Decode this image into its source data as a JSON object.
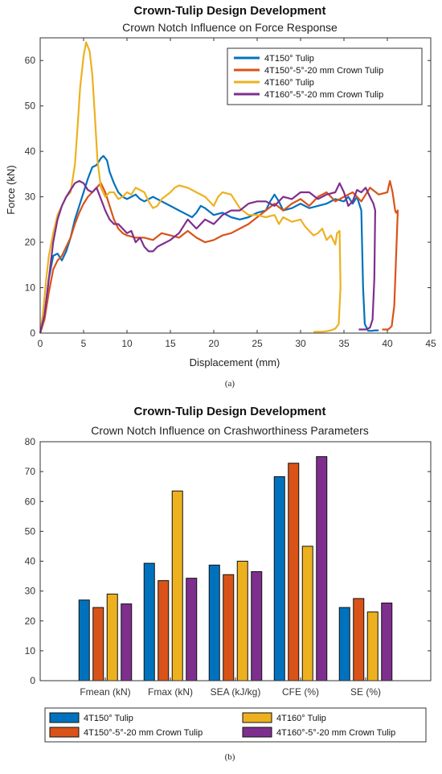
{
  "chart_data": [
    {
      "type": "line",
      "title": "Crown-Tulip Design Development",
      "subtitle": "Crown Notch Influence on Force Response",
      "xlabel": "Displacement (mm)",
      "ylabel": "Force (kN)",
      "xlim": [
        0,
        45
      ],
      "ylim": [
        0,
        65
      ],
      "xticks": [
        "0",
        "5",
        "10",
        "15",
        "20",
        "25",
        "30",
        "35",
        "40",
        "45"
      ],
      "yticks": [
        "0",
        "10",
        "20",
        "30",
        "40",
        "50",
        "60"
      ],
      "grid": false,
      "legend_position": "top-right",
      "caption": "(a)",
      "series": [
        {
          "name": "4T150° Tulip",
          "color": "#0072BD",
          "points": [
            [
              0,
              0
            ],
            [
              0.5,
              4
            ],
            [
              1,
              12
            ],
            [
              1.5,
              17
            ],
            [
              2,
              17.5
            ],
            [
              2.5,
              16
            ],
            [
              3,
              18
            ],
            [
              3.5,
              21
            ],
            [
              4,
              25
            ],
            [
              4.5,
              28
            ],
            [
              5,
              31
            ],
            [
              5.5,
              34
            ],
            [
              6,
              36.5
            ],
            [
              6.5,
              37
            ],
            [
              7,
              38.5
            ],
            [
              7.3,
              39
            ],
            [
              7.7,
              38
            ],
            [
              8,
              35.5
            ],
            [
              8.5,
              33
            ],
            [
              9,
              31
            ],
            [
              9.5,
              30
            ],
            [
              10,
              29.5
            ],
            [
              10.5,
              30
            ],
            [
              11,
              30.5
            ],
            [
              11.5,
              29.5
            ],
            [
              12,
              29
            ],
            [
              13,
              30
            ],
            [
              14,
              29
            ],
            [
              15,
              28
            ],
            [
              16,
              27
            ],
            [
              17,
              26
            ],
            [
              17.5,
              25.5
            ],
            [
              18,
              26.5
            ],
            [
              18.5,
              28
            ],
            [
              19,
              27.5
            ],
            [
              20,
              26
            ],
            [
              21,
              26.5
            ],
            [
              22,
              25.5
            ],
            [
              23,
              25
            ],
            [
              24,
              25.5
            ],
            [
              25,
              26.5
            ],
            [
              26,
              27
            ],
            [
              26.5,
              29
            ],
            [
              27,
              30.5
            ],
            [
              27.5,
              29
            ],
            [
              28,
              27
            ],
            [
              29,
              27.5
            ],
            [
              30,
              28.5
            ],
            [
              31,
              27.5
            ],
            [
              32,
              28
            ],
            [
              33,
              28.5
            ],
            [
              34,
              29.5
            ],
            [
              35,
              29
            ],
            [
              35.5,
              30
            ],
            [
              36,
              28.5
            ],
            [
              36.5,
              30
            ],
            [
              37,
              27
            ],
            [
              37.2,
              10
            ],
            [
              37.4,
              2
            ],
            [
              37.8,
              0.5
            ],
            [
              38.2,
              0.5
            ],
            [
              38.6,
              0.6
            ],
            [
              39.0,
              0.6
            ]
          ]
        },
        {
          "name": "4T150°-5°-20 mm Crown Tulip",
          "color": "#D95319",
          "points": [
            [
              0,
              0
            ],
            [
              0.5,
              3
            ],
            [
              1,
              9
            ],
            [
              1.5,
              14
            ],
            [
              2,
              16
            ],
            [
              2.5,
              17
            ],
            [
              3,
              19
            ],
            [
              3.5,
              21
            ],
            [
              4,
              24
            ],
            [
              4.5,
              26.5
            ],
            [
              5,
              28.5
            ],
            [
              5.5,
              30
            ],
            [
              6,
              31
            ],
            [
              6.5,
              32
            ],
            [
              7,
              33
            ],
            [
              7.5,
              31
            ],
            [
              8,
              28
            ],
            [
              8.5,
              25
            ],
            [
              9,
              23
            ],
            [
              9.5,
              22
            ],
            [
              10,
              21.5
            ],
            [
              11,
              21
            ],
            [
              12,
              21
            ],
            [
              13,
              20.5
            ],
            [
              14,
              22
            ],
            [
              15,
              21.5
            ],
            [
              16,
              21
            ],
            [
              17,
              22.5
            ],
            [
              18,
              21
            ],
            [
              19,
              20
            ],
            [
              20,
              20.5
            ],
            [
              21,
              21.5
            ],
            [
              22,
              22
            ],
            [
              23,
              23
            ],
            [
              24,
              24
            ],
            [
              25,
              25.5
            ],
            [
              26,
              27
            ],
            [
              27,
              28.5
            ],
            [
              28,
              27
            ],
            [
              29,
              28.5
            ],
            [
              30,
              29.5
            ],
            [
              31,
              28
            ],
            [
              32,
              30
            ],
            [
              33,
              31
            ],
            [
              34,
              29
            ],
            [
              35,
              30
            ],
            [
              36,
              31
            ],
            [
              37,
              29
            ],
            [
              38,
              32
            ],
            [
              39,
              30.5
            ],
            [
              40,
              31
            ],
            [
              40.3,
              33.5
            ],
            [
              40.6,
              31
            ],
            [
              40.9,
              27
            ],
            [
              41.0,
              26.5
            ],
            [
              41.0,
              26.5
            ],
            [
              41.2,
              27
            ],
            [
              40.8,
              6
            ],
            [
              40.5,
              1.5
            ],
            [
              40.1,
              0.8
            ],
            [
              39.7,
              0.8
            ],
            [
              39.4,
              0.8
            ]
          ]
        },
        {
          "name": "4T160° Tulip",
          "color": "#EDB120",
          "points": [
            [
              0,
              0
            ],
            [
              0.3,
              4
            ],
            [
              0.7,
              12
            ],
            [
              1,
              17
            ],
            [
              1.5,
              22
            ],
            [
              2,
              26
            ],
            [
              2.5,
              28
            ],
            [
              3,
              30
            ],
            [
              3.5,
              31
            ],
            [
              4,
              37
            ],
            [
              4.3,
              45
            ],
            [
              4.6,
              54
            ],
            [
              5,
              61
            ],
            [
              5.3,
              64
            ],
            [
              5.7,
              62
            ],
            [
              6,
              57
            ],
            [
              6.3,
              48
            ],
            [
              6.6,
              38
            ],
            [
              7,
              32
            ],
            [
              7.5,
              30
            ],
            [
              8,
              31
            ],
            [
              8.5,
              31
            ],
            [
              9,
              29.5
            ],
            [
              9.5,
              30
            ],
            [
              10,
              31
            ],
            [
              10.5,
              30.5
            ],
            [
              11,
              32
            ],
            [
              11.5,
              31.5
            ],
            [
              12,
              31
            ],
            [
              12.5,
              29
            ],
            [
              13,
              27.5
            ],
            [
              13.5,
              28
            ],
            [
              14,
              29.5
            ],
            [
              15,
              31
            ],
            [
              15.5,
              32
            ],
            [
              16,
              32.5
            ],
            [
              17,
              32
            ],
            [
              18,
              31
            ],
            [
              19,
              30
            ],
            [
              20,
              28
            ],
            [
              20.5,
              30
            ],
            [
              21,
              31
            ],
            [
              22,
              30.5
            ],
            [
              23,
              27.5
            ],
            [
              24,
              26
            ],
            [
              25,
              26
            ],
            [
              26,
              25.5
            ],
            [
              27,
              26
            ],
            [
              27.5,
              24
            ],
            [
              28,
              25.5
            ],
            [
              29,
              24.5
            ],
            [
              30,
              25
            ],
            [
              30.5,
              23.5
            ],
            [
              31,
              22.5
            ],
            [
              31.5,
              21.5
            ],
            [
              32,
              22
            ],
            [
              32.5,
              23
            ],
            [
              33,
              20.5
            ],
            [
              33.5,
              21.5
            ],
            [
              34,
              19.5
            ],
            [
              34.2,
              22
            ],
            [
              34.5,
              22.5
            ],
            [
              34.6,
              10
            ],
            [
              34.4,
              2
            ],
            [
              34.0,
              1
            ],
            [
              33.5,
              0.6
            ],
            [
              33.0,
              0.4
            ],
            [
              32.5,
              0.3
            ],
            [
              32.0,
              0.3
            ],
            [
              31.5,
              0.3
            ]
          ]
        },
        {
          "name": "4T160°-5°-20 mm Crown Tulip",
          "color": "#7E2F8E",
          "points": [
            [
              0,
              0
            ],
            [
              0.5,
              4
            ],
            [
              1,
              12
            ],
            [
              1.5,
              20
            ],
            [
              2,
              25
            ],
            [
              2.5,
              28
            ],
            [
              3,
              30
            ],
            [
              3.5,
              31.5
            ],
            [
              4,
              33
            ],
            [
              4.5,
              33.5
            ],
            [
              5,
              33
            ],
            [
              5.5,
              31.5
            ],
            [
              6,
              31
            ],
            [
              6.5,
              32
            ],
            [
              7,
              29.5
            ],
            [
              7.5,
              27
            ],
            [
              8,
              25
            ],
            [
              8.5,
              24
            ],
            [
              9,
              24
            ],
            [
              9.5,
              23
            ],
            [
              10,
              22
            ],
            [
              10.5,
              22.5
            ],
            [
              11,
              20
            ],
            [
              11.5,
              21
            ],
            [
              12,
              19
            ],
            [
              12.5,
              18
            ],
            [
              13,
              18
            ],
            [
              13.5,
              19
            ],
            [
              14,
              19.5
            ],
            [
              15,
              20.5
            ],
            [
              16,
              22
            ],
            [
              17,
              25
            ],
            [
              18,
              23
            ],
            [
              19,
              25
            ],
            [
              20,
              24
            ],
            [
              21,
              26
            ],
            [
              22,
              27
            ],
            [
              23,
              27
            ],
            [
              24,
              28.5
            ],
            [
              25,
              29
            ],
            [
              26,
              29
            ],
            [
              27,
              28
            ],
            [
              28,
              30
            ],
            [
              29,
              29.5
            ],
            [
              30,
              31
            ],
            [
              31,
              31
            ],
            [
              32,
              29.5
            ],
            [
              33,
              30.5
            ],
            [
              34,
              31
            ],
            [
              34.5,
              33
            ],
            [
              35,
              31
            ],
            [
              35.5,
              28
            ],
            [
              36,
              29
            ],
            [
              36.5,
              31.5
            ],
            [
              37,
              31
            ],
            [
              37.5,
              32
            ],
            [
              38,
              30
            ],
            [
              38.4,
              28.5
            ],
            [
              38.6,
              27
            ],
            [
              38.5,
              12
            ],
            [
              38.3,
              3
            ],
            [
              38.0,
              1.2
            ],
            [
              37.5,
              0.8
            ],
            [
              37.0,
              0.8
            ],
            [
              36.7,
              0.8
            ]
          ]
        }
      ]
    },
    {
      "type": "bar",
      "title": "Crown-Tulip Design Development",
      "subtitle": "Crown Notch Influence on Crashworthiness Parameters",
      "xlabel": "",
      "ylabel": "",
      "ylim": [
        0,
        80
      ],
      "yticks": [
        "0",
        "10",
        "20",
        "30",
        "40",
        "50",
        "60",
        "70",
        "80"
      ],
      "grid": false,
      "legend_position": "bottom",
      "caption": "(b)",
      "categories": [
        "Fmean (kN)",
        "Fmax (kN)",
        "SEA (kJ/kg)",
        "CFE (%)",
        "SE (%)"
      ],
      "series": [
        {
          "name": "4T150° Tulip",
          "color": "#0072BD",
          "values": [
            27,
            39.3,
            38.7,
            68.3,
            24.5
          ]
        },
        {
          "name": "4T150°-5°-20 mm Crown Tulip",
          "color": "#D95319",
          "values": [
            24.5,
            33.5,
            35.5,
            72.8,
            27.5
          ]
        },
        {
          "name": "4T160° Tulip",
          "color": "#EDB120",
          "values": [
            29,
            63.5,
            40,
            45,
            23
          ]
        },
        {
          "name": "4T160°-5°-20 mm Crown Tulip",
          "color": "#7E2F8E",
          "values": [
            25.7,
            34.3,
            36.5,
            75,
            26
          ]
        }
      ]
    }
  ]
}
